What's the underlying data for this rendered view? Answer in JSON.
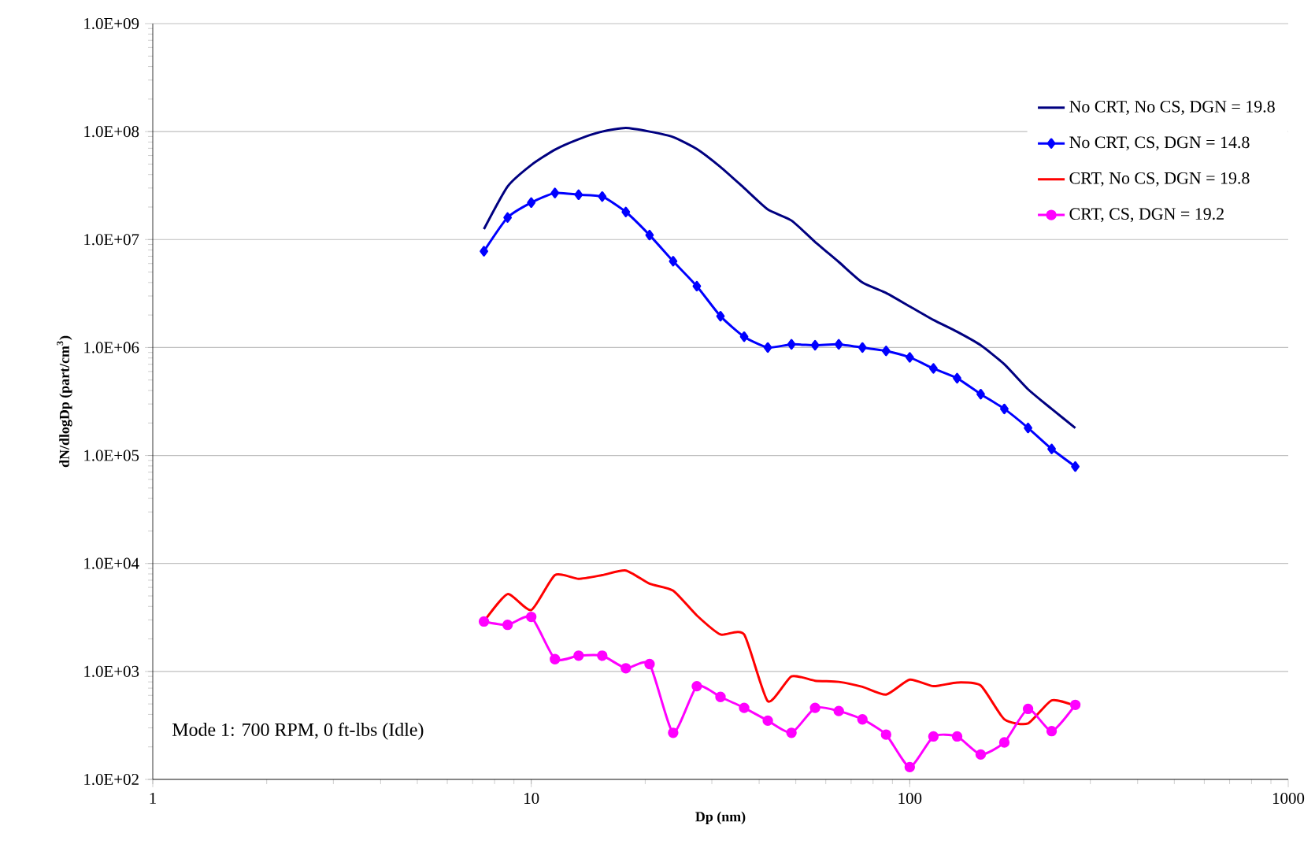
{
  "chart_data": {
    "type": "line",
    "xlabel": "Dp (nm)",
    "ylabel": "dN/dlogDp (part/cm$^{3}$)",
    "log": "xy",
    "grid": "y",
    "legend": "top right",
    "xlim": [
      1,
      1000
    ],
    "ylim": [
      100,
      1000000000
    ],
    "xticks": [
      1,
      10,
      100,
      1000
    ],
    "yticks": [
      {
        "value": 100,
        "label": "1.0E+02"
      },
      {
        "value": 1000,
        "label": "1.0E+03"
      },
      {
        "value": 10000,
        "label": "1.0E+04"
      },
      {
        "value": 100000,
        "label": "1.0E+05"
      },
      {
        "value": 1000000,
        "label": "1.0E+06"
      },
      {
        "value": 10000000,
        "label": "1.0E+07"
      },
      {
        "value": 100000000,
        "label": "1.0E+08"
      },
      {
        "value": 1000000000,
        "label": "1.0E+09"
      }
    ],
    "x": [
      7.5,
      8.66,
      10.0,
      11.55,
      13.34,
      15.4,
      17.78,
      20.54,
      23.71,
      27.38,
      31.62,
      36.52,
      42.17,
      48.7,
      56.23,
      64.94,
      74.99,
      86.6,
      100.0,
      115.5,
      133.4,
      154.0,
      177.8,
      205.4,
      237.1,
      273.8
    ],
    "series": [
      {
        "name": "No CRT, No CS, DGN = 19.8",
        "color": "#000080",
        "marker": "none",
        "values": [
          12500000,
          31000000,
          49000000,
          68000000,
          85000000,
          100000000,
          108000000,
          100000000,
          89000000,
          69000000,
          47000000,
          30000000,
          19000000,
          15000000,
          9500000,
          6200000,
          4000000,
          3200000,
          2400000,
          1800000,
          1400000,
          1050000,
          700000,
          410000,
          270000,
          180000
        ]
      },
      {
        "name": "No CRT, CS, DGN = 14.8",
        "color": "#0000ff",
        "marker": "diamond",
        "values": [
          7800000,
          16000000,
          22000000,
          27000000,
          26000000,
          25000000,
          18000000,
          11000000,
          6300000,
          3700000,
          1950000,
          1260000,
          1000000,
          1070000,
          1050000,
          1070000,
          1000000,
          930000,
          810000,
          640000,
          520000,
          370000,
          270000,
          180000,
          115000,
          79000
        ]
      },
      {
        "name": "CRT, No CS, DGN = 19.8",
        "color": "#ff0000",
        "marker": "none",
        "values": [
          2900,
          5200,
          3700,
          7800,
          7200,
          7800,
          8600,
          6500,
          5600,
          3300,
          2200,
          2200,
          530,
          900,
          820,
          800,
          720,
          610,
          840,
          730,
          790,
          740,
          360,
          330,
          540,
          480
        ]
      },
      {
        "name": "CRT, CS, DGN = 19.2",
        "color": "#ff00ff",
        "marker": "circle",
        "values": [
          2900,
          2700,
          3200,
          1300,
          1400,
          1400,
          1070,
          1170,
          270,
          730,
          580,
          460,
          350,
          270,
          460,
          430,
          360,
          260,
          130,
          250,
          250,
          170,
          220,
          450,
          280,
          490
        ]
      }
    ],
    "annotations": [
      "Mode 1: 700 RPM, 0 ft-lbs (Idle)"
    ]
  }
}
